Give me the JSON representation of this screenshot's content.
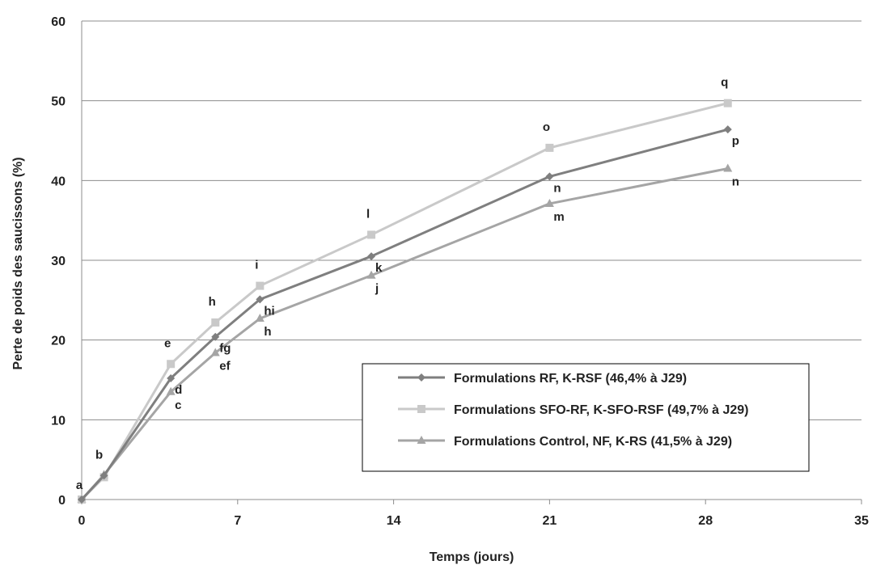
{
  "chart_data": {
    "type": "line",
    "xlabel": "Temps (jours)",
    "ylabel": "Perte de poids des saucissons (%)",
    "xlim": [
      0,
      35
    ],
    "ylim": [
      0,
      60
    ],
    "xticks": [
      0,
      7,
      14,
      21,
      28,
      35
    ],
    "yticks": [
      0,
      10,
      20,
      30,
      40,
      50,
      60
    ],
    "grid": "horizontal",
    "legend_position": "bottom-right",
    "series": [
      {
        "name": "Formulations RF, K-RSF (46,4% à J29)",
        "color": "#7f7f7f",
        "marker": "diamond",
        "x": [
          0,
          1,
          4,
          6,
          8,
          13,
          21,
          29
        ],
        "y": [
          0,
          3.0,
          15.2,
          20.4,
          25.1,
          30.5,
          40.5,
          46.4
        ],
        "labels": [
          "a",
          "b",
          "d",
          "fg",
          "hi",
          "k",
          "n",
          "p"
        ]
      },
      {
        "name": "Formulations SFO-RF, K-SFO-RSF (49,7% à J29)",
        "color": "#c9c9c9",
        "marker": "square",
        "x": [
          0,
          1,
          4,
          6,
          8,
          13,
          21,
          29
        ],
        "y": [
          0,
          2.8,
          17.0,
          22.2,
          26.8,
          33.2,
          44.1,
          49.7
        ],
        "labels": [
          "",
          "",
          "e",
          "h",
          "i",
          "l",
          "o",
          "q"
        ]
      },
      {
        "name": "Formulations Control, NF, K-RS (41,5% à J29)",
        "color": "#a5a5a5",
        "marker": "triangle",
        "x": [
          0,
          1,
          4,
          6,
          8,
          13,
          21,
          29
        ],
        "y": [
          0,
          3.1,
          13.5,
          18.4,
          22.7,
          28.1,
          37.1,
          41.5
        ],
        "labels": [
          "",
          "",
          "c",
          "ef",
          "h",
          "j",
          "m",
          "n"
        ]
      }
    ]
  }
}
